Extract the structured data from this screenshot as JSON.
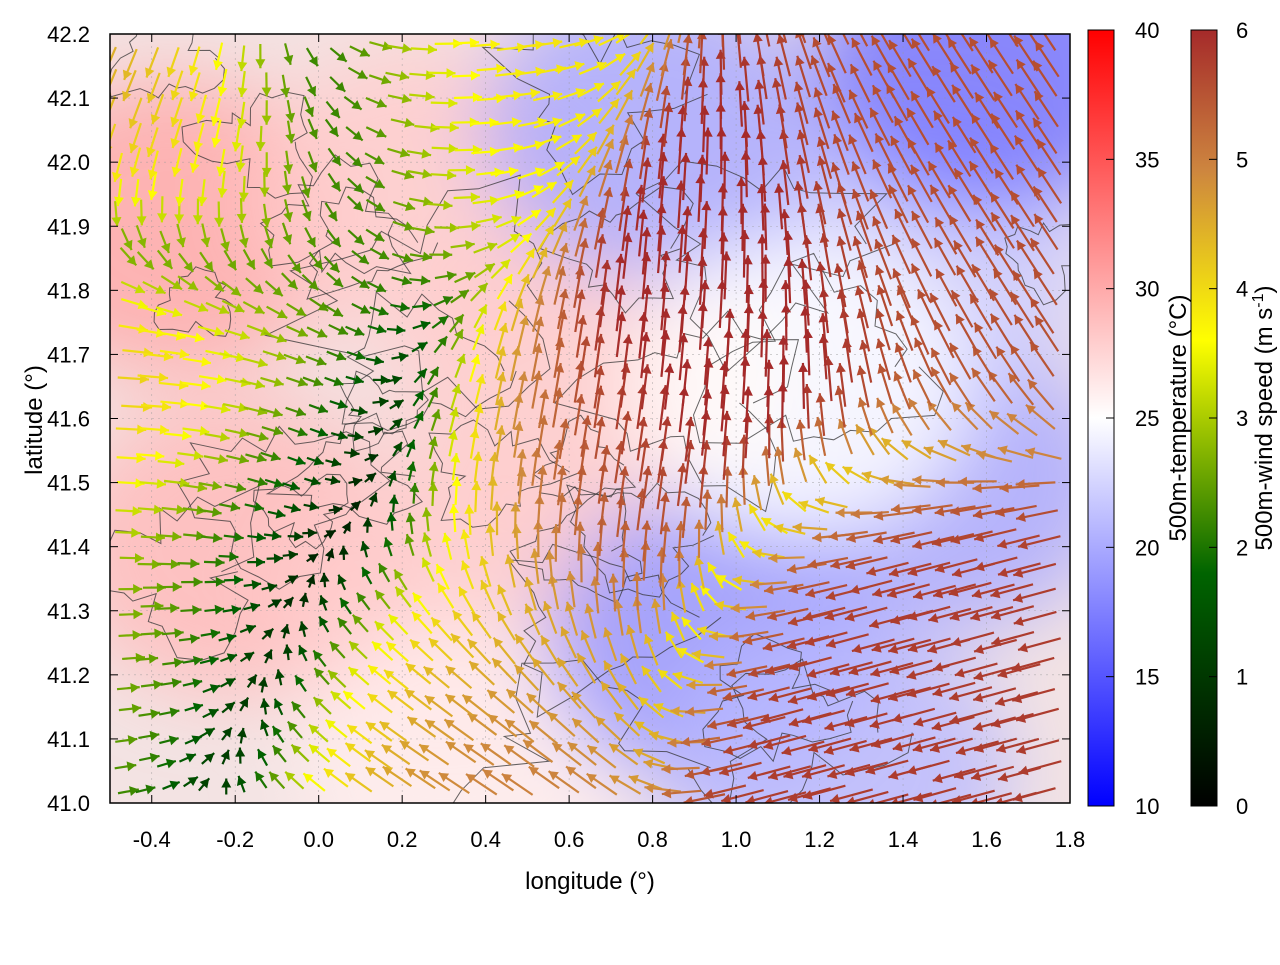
{
  "chart_data": {
    "type": "heatmap",
    "title": "",
    "xlabel": "longitude (°)",
    "ylabel": "latitude (°)",
    "xlim": [
      -0.5,
      1.8
    ],
    "ylim": [
      41.0,
      42.2
    ],
    "x_ticks": [
      "-0.4",
      "-0.2",
      "0.0",
      "0.2",
      "0.4",
      "0.6",
      "0.8",
      "1.0",
      "1.2",
      "1.4",
      "1.6",
      "1.8"
    ],
    "x_tick_values": [
      -0.4,
      -0.2,
      0.0,
      0.2,
      0.4,
      0.6,
      0.8,
      1.0,
      1.2,
      1.4,
      1.6,
      1.8
    ],
    "y_ticks": [
      "41.0",
      "41.1",
      "41.2",
      "41.3",
      "41.4",
      "41.5",
      "41.6",
      "41.7",
      "41.8",
      "41.9",
      "42.0",
      "42.1",
      "42.2"
    ],
    "y_tick_values": [
      41.0,
      41.1,
      41.2,
      41.3,
      41.4,
      41.5,
      41.6,
      41.7,
      41.8,
      41.9,
      42.0,
      42.1,
      42.2
    ],
    "grid": true,
    "layers": {
      "temperature_field": "500m-temperature",
      "wind_vectors": "500m-wind speed",
      "contours": "terrain elevation (dark gray lines)"
    },
    "temperature_colorbar": {
      "label": "500m-temperature (°C)",
      "range": [
        10,
        40
      ],
      "ticks": [
        "10",
        "15",
        "20",
        "25",
        "30",
        "35",
        "40"
      ],
      "tick_values": [
        10,
        15,
        20,
        25,
        30,
        35,
        40
      ],
      "colors": [
        "#0000ff",
        "#ffffff",
        "#ff0000"
      ]
    },
    "wind_colorbar": {
      "label_main": "500m-wind speed (m s",
      "label_exp": "-1",
      "label_end": ")",
      "range": [
        0,
        6
      ],
      "ticks": [
        "0",
        "1",
        "2",
        "3",
        "4",
        "5",
        "6"
      ],
      "tick_values": [
        0,
        1,
        2,
        3,
        4,
        5,
        6
      ],
      "colors": [
        "#000000",
        "#006400",
        "#ffff00",
        "#cd853f",
        "#a52a2a"
      ]
    },
    "temperature_regions": [
      {
        "lon": -0.35,
        "lat": 41.9,
        "temp": 30
      },
      {
        "lon": -0.2,
        "lat": 41.4,
        "temp": 29
      },
      {
        "lon": 0.3,
        "lat": 41.3,
        "temp": 28
      },
      {
        "lon": 0.35,
        "lat": 41.05,
        "temp": 26
      },
      {
        "lon": 0.6,
        "lat": 41.65,
        "temp": 28
      },
      {
        "lon": 0.25,
        "lat": 41.95,
        "temp": 28
      },
      {
        "lon": 0.95,
        "lat": 41.25,
        "temp": 19
      },
      {
        "lon": 1.5,
        "lat": 41.5,
        "temp": 20
      },
      {
        "lon": 1.25,
        "lat": 41.05,
        "temp": 21
      },
      {
        "lon": 1.45,
        "lat": 41.85,
        "temp": 22
      },
      {
        "lon": 1.6,
        "lat": 42.15,
        "temp": 17
      },
      {
        "lon": 0.8,
        "lat": 42.05,
        "temp": 20
      },
      {
        "lon": 1.15,
        "lat": 41.65,
        "temp": 25
      }
    ],
    "wind_regions": [
      {
        "lon": -0.2,
        "lat": 41.3,
        "u": 2.5,
        "v": 0.1,
        "speed": 2.5
      },
      {
        "lon": 0.0,
        "lat": 41.55,
        "u": 0.2,
        "v": -1.5,
        "speed": 1.6
      },
      {
        "lon": -0.3,
        "lat": 41.7,
        "u": 4.5,
        "v": 0.2,
        "speed": 4.5
      },
      {
        "lon": 0.2,
        "lat": 42.05,
        "u": 3.5,
        "v": 0.5,
        "speed": 3.6
      },
      {
        "lon": 0.5,
        "lat": 41.5,
        "u": 1.0,
        "v": 5.5,
        "speed": 5.6
      },
      {
        "lon": 1.0,
        "lat": 41.8,
        "u": 0.5,
        "v": 6.5,
        "speed": 6.5
      },
      {
        "lon": 1.5,
        "lat": 41.2,
        "u": -5.5,
        "v": -1.5,
        "speed": 5.7
      },
      {
        "lon": 0.2,
        "lat": 41.2,
        "u": -4.0,
        "v": 2.5,
        "speed": 4.7
      },
      {
        "lon": 1.5,
        "lat": 41.9,
        "u": -3.0,
        "v": 4.5,
        "speed": 5.4
      },
      {
        "lon": -0.2,
        "lat": 42.0,
        "u": -2.0,
        "v": -4.0,
        "speed": 4.5
      }
    ]
  }
}
